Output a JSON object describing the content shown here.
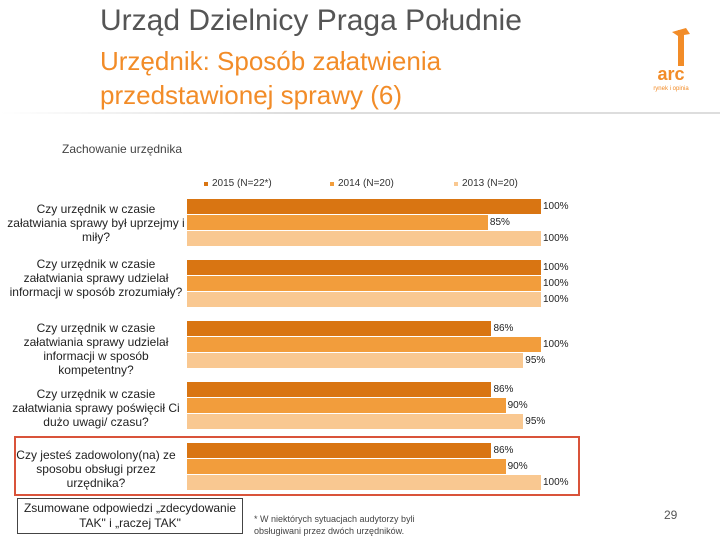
{
  "header": {
    "title": "Urząd Dzielnicy Praga Południe",
    "subtitle": "Urzędnik: Sposób załatwienia przedstawionej sprawy (6)"
  },
  "logo": {
    "text": "arc",
    "tagline": "rynek i opinia"
  },
  "chart_data": {
    "type": "bar",
    "orientation": "horizontal",
    "title": "Zachowanie urzędnika",
    "categories": [
      "Czy urzędnik w czasie załatwiania sprawy był uprzejmy i miły?",
      "Czy urzędnik w czasie załatwiania sprawy udzielał informacji w sposób zrozumiały?",
      "Czy urzędnik w czasie załatwiania sprawy udzielał informacji w sposób kompetentny?",
      "Czy urzędnik w czasie załatwiania sprawy poświęcił Ci dużo uwagi/ czasu?",
      "Czy jesteś zadowolony(na) ze sposobu obsługi przez urzędnika?"
    ],
    "series": [
      {
        "name": "2015 (N=22*)",
        "color": "#D97512",
        "values": [
          100,
          100,
          86,
          86,
          86
        ]
      },
      {
        "name": "2014 (N=20)",
        "color": "#F29D3C",
        "values": [
          85,
          100,
          100,
          90,
          90
        ]
      },
      {
        "name": "2013 (N=20)",
        "color": "#F9C891",
        "values": [
          100,
          100,
          95,
          95,
          100
        ]
      }
    ],
    "value_suffix": "%",
    "xlim": [
      0,
      100
    ]
  },
  "summary_note": "Zsumowane odpowiedzi „zdecydowanie TAK\" i „raczej TAK\"",
  "footnote": "* W niektórych sytuacjach audytorzy byli obsługiwani przez dwóch urzędników.",
  "page_number": "29"
}
